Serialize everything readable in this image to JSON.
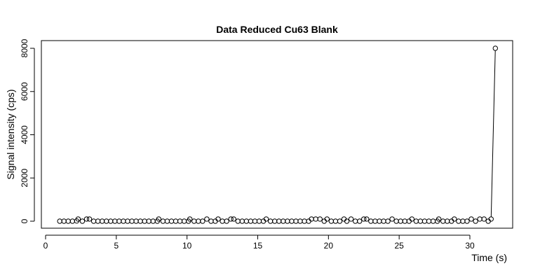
{
  "chart_data": {
    "type": "scatter",
    "title": "Data Reduced Cu63 Blank",
    "xlabel": "Time (s)",
    "ylabel": "Signal intensity (cps)",
    "xlim": [
      0,
      32.5
    ],
    "ylim": [
      -200,
      8400
    ],
    "x_ticks": [
      0,
      5,
      10,
      15,
      20,
      25,
      30
    ],
    "y_ticks": [
      0,
      2000,
      4000,
      6000,
      8000
    ],
    "grid": false,
    "legend": "none",
    "x": [
      1.0,
      1.3,
      1.6,
      1.9,
      2.2,
      2.3,
      2.6,
      2.9,
      3.1,
      3.4,
      3.7,
      4.0,
      4.3,
      4.6,
      4.9,
      5.2,
      5.5,
      5.8,
      6.1,
      6.4,
      6.7,
      7.0,
      7.3,
      7.6,
      7.9,
      8.0,
      8.3,
      8.6,
      8.9,
      9.2,
      9.5,
      9.8,
      10.1,
      10.2,
      10.5,
      10.8,
      11.1,
      11.4,
      11.7,
      12.0,
      12.2,
      12.5,
      12.8,
      13.1,
      13.3,
      13.6,
      13.9,
      14.2,
      14.5,
      14.8,
      15.1,
      15.4,
      15.6,
      15.9,
      16.2,
      16.5,
      16.8,
      17.1,
      17.4,
      17.7,
      18.0,
      18.3,
      18.6,
      18.8,
      19.1,
      19.4,
      19.7,
      19.9,
      20.2,
      20.5,
      20.8,
      21.1,
      21.3,
      21.6,
      21.9,
      22.2,
      22.5,
      22.7,
      23.0,
      23.3,
      23.6,
      23.9,
      24.2,
      24.5,
      24.8,
      25.1,
      25.4,
      25.7,
      25.9,
      26.2,
      26.5,
      26.8,
      27.1,
      27.4,
      27.7,
      27.8,
      28.1,
      28.4,
      28.7,
      28.9,
      29.2,
      29.5,
      29.8,
      30.1,
      30.4,
      30.7,
      31.0,
      31.3,
      31.5,
      31.8
    ],
    "y": [
      0,
      0,
      0,
      0,
      10,
      100,
      0,
      100,
      100,
      0,
      0,
      0,
      0,
      0,
      0,
      0,
      0,
      0,
      0,
      0,
      0,
      0,
      0,
      0,
      0,
      100,
      0,
      0,
      0,
      0,
      0,
      0,
      0,
      100,
      0,
      0,
      0,
      100,
      0,
      0,
      100,
      0,
      0,
      100,
      100,
      0,
      0,
      0,
      0,
      0,
      0,
      0,
      100,
      0,
      0,
      0,
      0,
      0,
      0,
      0,
      0,
      0,
      0,
      100,
      100,
      100,
      0,
      100,
      0,
      0,
      0,
      100,
      0,
      100,
      0,
      0,
      100,
      100,
      0,
      0,
      0,
      0,
      0,
      100,
      0,
      0,
      0,
      0,
      100,
      0,
      0,
      0,
      0,
      0,
      0,
      100,
      0,
      0,
      0,
      100,
      0,
      0,
      0,
      100,
      0,
      100,
      100,
      0,
      100,
      8000
    ]
  }
}
